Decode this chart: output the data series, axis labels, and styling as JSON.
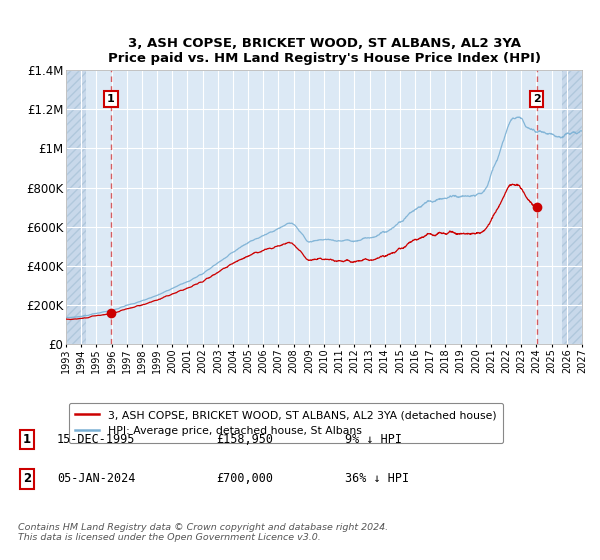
{
  "title": "3, ASH COPSE, BRICKET WOOD, ST ALBANS, AL2 3YA",
  "subtitle": "Price paid vs. HM Land Registry's House Price Index (HPI)",
  "bg_color": "#dce9f5",
  "hatch_color": "#c8d8ea",
  "grid_color": "#ffffff",
  "hpi_color": "#7ab0d4",
  "price_color": "#cc0000",
  "sale1_date_num": 1995.96,
  "sale1_price": 158950,
  "sale2_date_num": 2024.02,
  "sale2_price": 700000,
  "xmin": 1993,
  "xmax": 2027,
  "ymin": 0,
  "ymax": 1400000,
  "yticks": [
    0,
    200000,
    400000,
    600000,
    800000,
    1000000,
    1200000,
    1400000
  ],
  "ytick_labels": [
    "£0",
    "£200K",
    "£400K",
    "£600K",
    "£800K",
    "£1M",
    "£1.2M",
    "£1.4M"
  ],
  "xticks": [
    1993,
    1994,
    1995,
    1996,
    1997,
    1998,
    1999,
    2000,
    2001,
    2002,
    2003,
    2004,
    2005,
    2006,
    2007,
    2008,
    2009,
    2010,
    2011,
    2012,
    2013,
    2014,
    2015,
    2016,
    2017,
    2018,
    2019,
    2020,
    2021,
    2022,
    2023,
    2024,
    2025,
    2026,
    2027
  ],
  "legend_label_price": "3, ASH COPSE, BRICKET WOOD, ST ALBANS, AL2 3YA (detached house)",
  "legend_label_hpi": "HPI: Average price, detached house, St Albans",
  "note1_box": "1",
  "note1_date": "15-DEC-1995",
  "note1_price": "£158,950",
  "note1_hpi": "9% ↓ HPI",
  "note2_box": "2",
  "note2_date": "05-JAN-2024",
  "note2_price": "£700,000",
  "note2_hpi": "36% ↓ HPI",
  "footer": "Contains HM Land Registry data © Crown copyright and database right 2024.\nThis data is licensed under the Open Government Licence v3.0.",
  "hatch_left_end": 1994.3,
  "hatch_right_start": 2025.7
}
